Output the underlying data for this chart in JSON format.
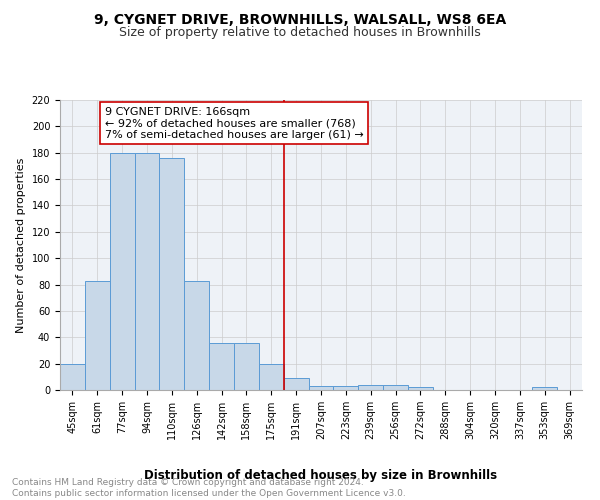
{
  "title1": "9, CYGNET DRIVE, BROWNHILLS, WALSALL, WS8 6EA",
  "title2": "Size of property relative to detached houses in Brownhills",
  "xlabel": "Distribution of detached houses by size in Brownhills",
  "ylabel": "Number of detached properties",
  "bar_labels": [
    "45sqm",
    "61sqm",
    "77sqm",
    "94sqm",
    "110sqm",
    "126sqm",
    "142sqm",
    "158sqm",
    "175sqm",
    "191sqm",
    "207sqm",
    "223sqm",
    "239sqm",
    "256sqm",
    "272sqm",
    "288sqm",
    "304sqm",
    "320sqm",
    "337sqm",
    "353sqm",
    "369sqm"
  ],
  "bar_values": [
    20,
    83,
    180,
    180,
    176,
    83,
    36,
    36,
    20,
    9,
    3,
    3,
    4,
    4,
    2,
    0,
    0,
    0,
    0,
    2,
    0
  ],
  "bar_color": "#c8d8e8",
  "bar_edge_color": "#5b9bd5",
  "vline_x": 8.5,
  "vline_color": "#cc0000",
  "annotation_text": "9 CYGNET DRIVE: 166sqm\n← 92% of detached houses are smaller (768)\n7% of semi-detached houses are larger (61) →",
  "annotation_box_color": "#ffffff",
  "annotation_box_edge": "#cc0000",
  "ylim": [
    0,
    220
  ],
  "yticks": [
    0,
    20,
    40,
    60,
    80,
    100,
    120,
    140,
    160,
    180,
    200,
    220
  ],
  "bg_color": "#eef2f7",
  "footer_text": "Contains HM Land Registry data © Crown copyright and database right 2024.\nContains public sector information licensed under the Open Government Licence v3.0.",
  "title1_fontsize": 10,
  "title2_fontsize": 9,
  "xlabel_fontsize": 8.5,
  "ylabel_fontsize": 8,
  "tick_fontsize": 7,
  "annotation_fontsize": 8,
  "footer_fontsize": 6.5
}
